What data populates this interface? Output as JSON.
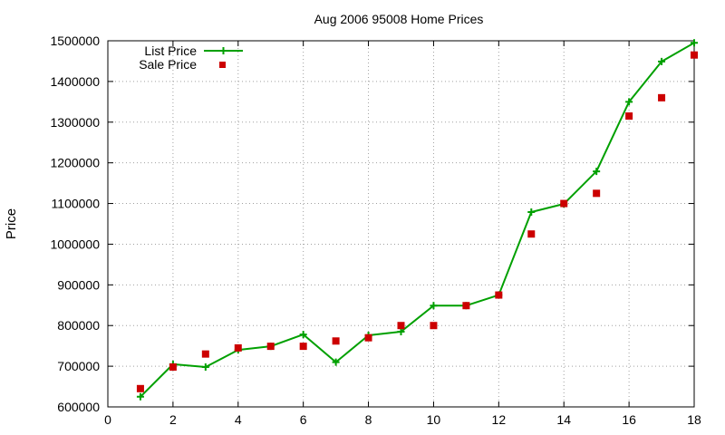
{
  "chart_data": {
    "type": "line",
    "title": "Aug 2006 95008 Home Prices",
    "xlabel": "",
    "ylabel": "Price",
    "xlim": [
      0,
      18
    ],
    "ylim": [
      600000,
      1500000
    ],
    "x_ticks": [
      0,
      2,
      4,
      6,
      8,
      10,
      12,
      14,
      16,
      18
    ],
    "y_ticks": [
      600000,
      700000,
      800000,
      900000,
      1000000,
      1100000,
      1200000,
      1300000,
      1400000,
      1500000
    ],
    "grid": true,
    "legend_position": "top-left",
    "x": [
      1,
      2,
      3,
      4,
      5,
      6,
      7,
      8,
      9,
      10,
      11,
      12,
      13,
      14,
      15,
      16,
      17,
      18
    ],
    "series": [
      {
        "name": "List Price",
        "style": "line-with-plus-markers",
        "color": "#00a000",
        "values": [
          625000,
          705000,
          698000,
          740000,
          749000,
          778000,
          710000,
          776000,
          785000,
          849000,
          849000,
          875000,
          1079000,
          1099000,
          1179000,
          1350000,
          1449000,
          1495000
        ]
      },
      {
        "name": "Sale Price",
        "style": "square-markers",
        "color": "#cc0000",
        "values": [
          645000,
          698000,
          730000,
          745000,
          749000,
          749000,
          762000,
          770000,
          800000,
          800000,
          849000,
          875000,
          1025000,
          1100000,
          1125000,
          1315000,
          1360000,
          1465000
        ]
      }
    ]
  }
}
